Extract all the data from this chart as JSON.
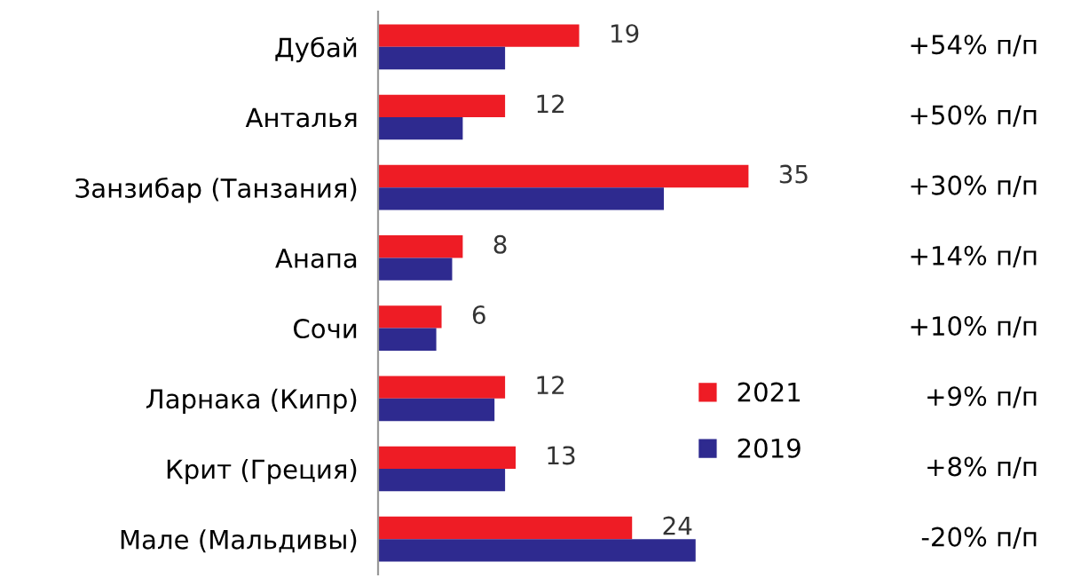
{
  "chart_data": {
    "type": "bar",
    "orientation": "horizontal",
    "tick_labels": "y",
    "legend": "right",
    "grid": false,
    "categories": [
      "Дубай",
      "Анталья",
      "Занзибар (Танзания)",
      "Анапа",
      "Сочи",
      "Ларнака (Кипр)",
      "Крит (Греция)",
      "Мале (Мальдивы)"
    ],
    "series": [
      {
        "name": "2021",
        "color": "#ee1c25",
        "values": [
          19,
          12,
          35,
          8,
          6,
          12,
          13,
          24
        ],
        "value_labels": [
          "19",
          "12",
          "35",
          "8",
          "6",
          "12",
          "13",
          "24"
        ]
      },
      {
        "name": "2019",
        "color": "#2e2a8f",
        "values": [
          12,
          8,
          27,
          7,
          5.5,
          11,
          12,
          30
        ]
      }
    ],
    "annotations": [
      "+54% п/п",
      "+50% п/п",
      "+30% п/п",
      "+14% п/п",
      "+10% п/п",
      "+9% п/п",
      "+8% п/п",
      "-20% п/п"
    ]
  }
}
